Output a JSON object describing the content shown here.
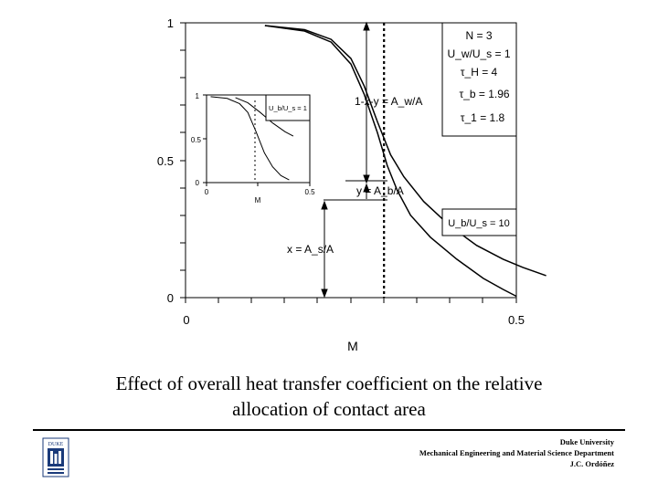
{
  "chart_data": [
    {
      "type": "line",
      "xlabel": "M",
      "ylabel": "",
      "xlim": [
        0,
        0.5
      ],
      "ylim": [
        0,
        1
      ],
      "x_ticks": [
        "0",
        "0.5"
      ],
      "y_ticks": [
        "0",
        "0.5",
        "1"
      ],
      "grid": false,
      "series": [
        {
          "values": [
            [
              0.12,
              0.99
            ],
            [
              0.18,
              0.97
            ],
            [
              0.22,
              0.93
            ],
            [
              0.25,
              0.85
            ],
            [
              0.27,
              0.74
            ],
            [
              0.29,
              0.6
            ],
            [
              0.305,
              0.48
            ],
            [
              0.32,
              0.39
            ],
            [
              0.34,
              0.3
            ],
            [
              0.37,
              0.22
            ],
            [
              0.41,
              0.14
            ],
            [
              0.45,
              0.07
            ],
            [
              0.48,
              0.03
            ],
            [
              0.5,
              0.005
            ]
          ]
        },
        {
          "values": [
            [
              0.12,
              0.99
            ],
            [
              0.18,
              0.975
            ],
            [
              0.22,
              0.94
            ],
            [
              0.25,
              0.87
            ],
            [
              0.27,
              0.77
            ],
            [
              0.29,
              0.64
            ],
            [
              0.31,
              0.52
            ],
            [
              0.33,
              0.44
            ],
            [
              0.36,
              0.35
            ],
            [
              0.4,
              0.26
            ],
            [
              0.44,
              0.19
            ],
            [
              0.48,
              0.14
            ],
            [
              0.51,
              0.11
            ],
            [
              0.545,
              0.08
            ]
          ]
        }
      ],
      "vline_x": 0.3,
      "annotations": {
        "params_box": [
          "N = 3",
          "U_w/U_s = 1",
          "τ_H = 4",
          "τ_b = 1.96",
          "τ_1 = 1.8"
        ],
        "ratio_box": "U_b/U_s = 10",
        "label_top": "1-x-y = A_w/A",
        "label_mid": "y = A_b/A",
        "label_low": "x = A_s/A"
      }
    },
    {
      "type": "line",
      "xlabel": "M",
      "xlim": [
        0,
        0.5
      ],
      "ylim": [
        0,
        1
      ],
      "x_ticks": [
        "0",
        "0.5"
      ],
      "y_ticks": [
        "0",
        "0.5",
        "1"
      ],
      "legend": "U_b/U_s = 1",
      "series": [
        {
          "values": [
            [
              0.02,
              0.98
            ],
            [
              0.1,
              0.96
            ],
            [
              0.16,
              0.9
            ],
            [
              0.2,
              0.8
            ],
            [
              0.24,
              0.58
            ],
            [
              0.28,
              0.34
            ],
            [
              0.32,
              0.18
            ],
            [
              0.36,
              0.08
            ],
            [
              0.4,
              0.03
            ]
          ]
        },
        {
          "values": [
            [
              0.14,
              0.97
            ],
            [
              0.2,
              0.91
            ],
            [
              0.26,
              0.8
            ],
            [
              0.32,
              0.68
            ],
            [
              0.38,
              0.58
            ],
            [
              0.42,
              0.53
            ]
          ]
        }
      ]
    }
  ],
  "caption_line1": "Effect of overall heat transfer coefficient on the relative",
  "caption_line2": "allocation of contact area",
  "footer_line1": "Duke University",
  "footer_line2": "Mechanical Engineering and Material Science Department",
  "footer_line3": "J.C. Ordóñez",
  "logo_text": "DUKE"
}
